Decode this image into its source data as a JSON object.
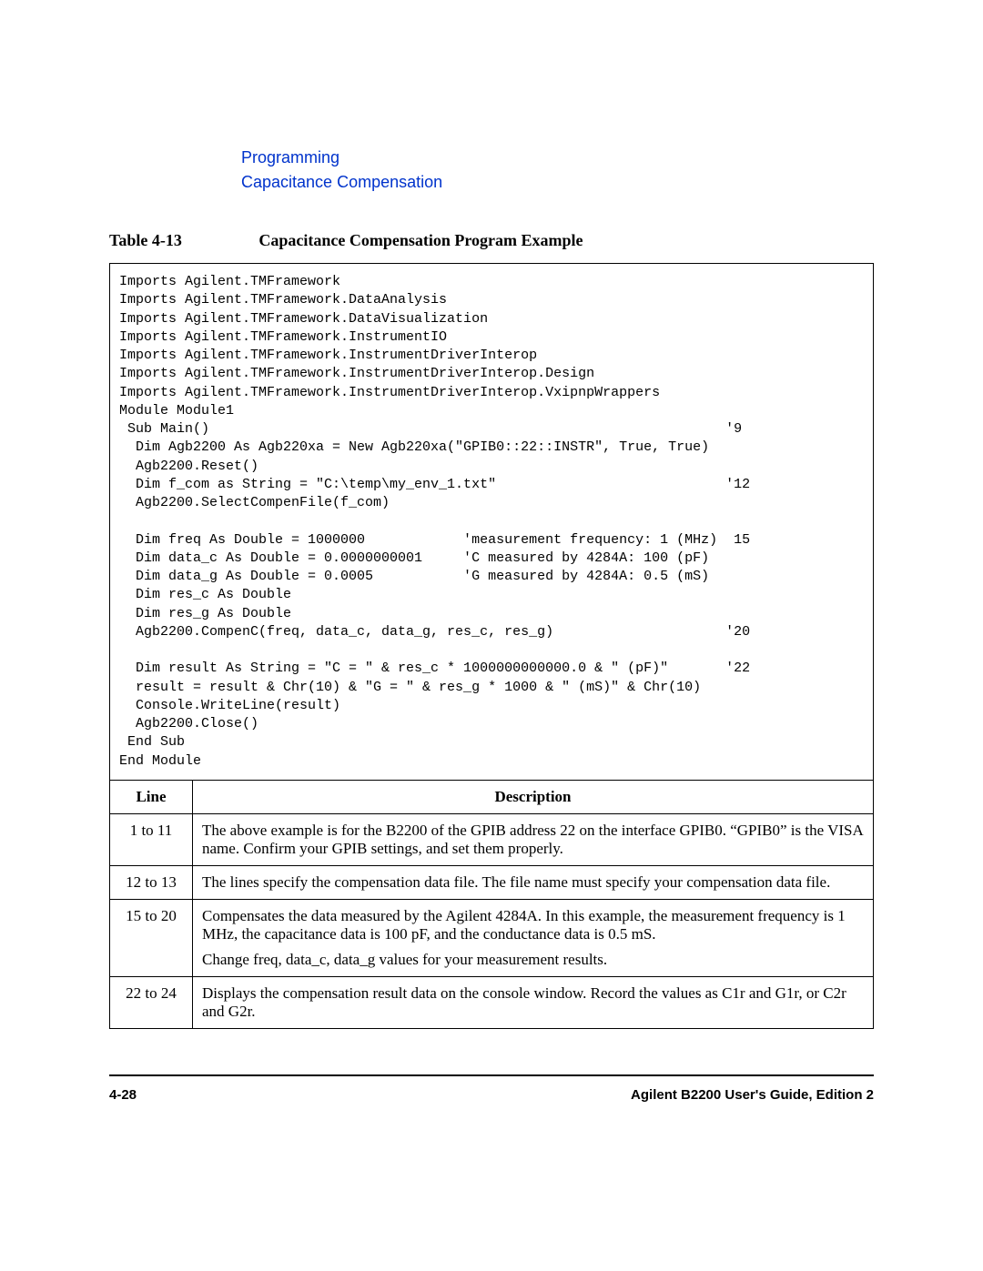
{
  "header": {
    "link1": "Programming",
    "link2": "Capacitance Compensation",
    "link_color": "#0033cc"
  },
  "table_caption": {
    "label": "Table 4-13",
    "title": "Capacitance Compensation Program Example"
  },
  "code": "Imports Agilent.TMFramework\nImports Agilent.TMFramework.DataAnalysis\nImports Agilent.TMFramework.DataVisualization\nImports Agilent.TMFramework.InstrumentIO\nImports Agilent.TMFramework.InstrumentDriverInterop\nImports Agilent.TMFramework.InstrumentDriverInterop.Design\nImports Agilent.TMFramework.InstrumentDriverInterop.VxipnpWrappers\nModule Module1\n Sub Main()                                                               '9\n  Dim Agb2200 As Agb220xa = New Agb220xa(\"GPIB0::22::INSTR\", True, True)\n  Agb2200.Reset()\n  Dim f_com as String = \"C:\\temp\\my_env_1.txt\"                            '12\n  Agb2200.SelectCompenFile(f_com)\n\n  Dim freq As Double = 1000000            'measurement frequency: 1 (MHz)  15\n  Dim data_c As Double = 0.0000000001     'C measured by 4284A: 100 (pF)\n  Dim data_g As Double = 0.0005           'G measured by 4284A: 0.5 (mS)\n  Dim res_c As Double\n  Dim res_g As Double\n  Agb2200.CompenC(freq, data_c, data_g, res_c, res_g)                     '20\n\n  Dim result As String = \"C = \" & res_c * 1000000000000.0 & \" (pF)\"       '22\n  result = result & Chr(10) & \"G = \" & res_g * 1000 & \" (mS)\" & Chr(10)\n  Console.WriteLine(result)\n  Agb2200.Close()\n End Sub\nEnd Module",
  "desc_table": {
    "headers": {
      "line": "Line",
      "desc": "Description"
    },
    "rows": [
      {
        "line": "1 to 11",
        "desc": "The above example is for the B2200 of the GPIB address 22 on the interface GPIB0. “GPIB0” is the VISA name. Confirm your GPIB settings, and set them properly."
      },
      {
        "line": "12 to 13",
        "desc": "The lines specify the compensation data file. The file name must specify your compensation data file."
      },
      {
        "line": "15 to 20",
        "desc_p1": "Compensates the data measured by the Agilent 4284A. In this example, the measurement frequency is 1 MHz, the capacitance data is 100 pF, and the conductance data is 0.5 mS.",
        "desc_p2": "Change freq, data_c, data_g values for your measurement results."
      },
      {
        "line": "22 to 24",
        "desc": "Displays the compensation result data on the console window. Record the values as C1r and G1r, or C2r and G2r."
      }
    ]
  },
  "footer": {
    "page": "4-28",
    "guide": "Agilent B2200 User's Guide, Edition 2"
  },
  "colors": {
    "text": "#000000",
    "background": "#ffffff",
    "border": "#000000"
  }
}
